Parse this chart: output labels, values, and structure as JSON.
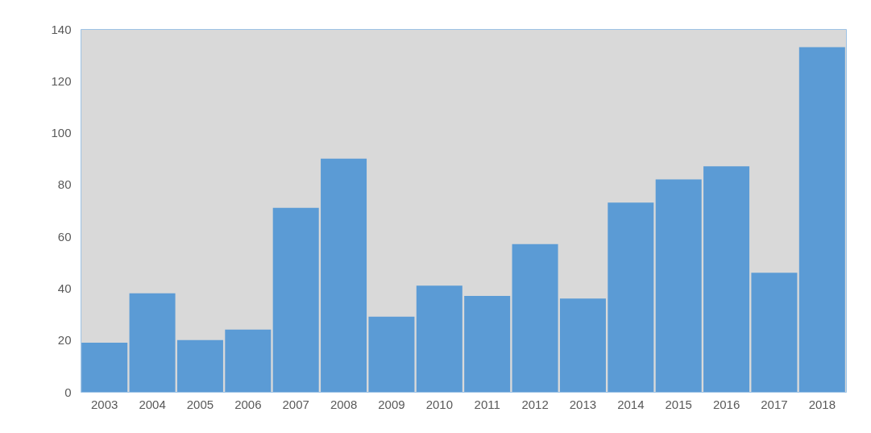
{
  "chart_data": {
    "type": "bar",
    "categories": [
      "2003",
      "2004",
      "2005",
      "2006",
      "2007",
      "2008",
      "2009",
      "2010",
      "2011",
      "2012",
      "2013",
      "2014",
      "2015",
      "2016",
      "2017",
      "2018"
    ],
    "values": [
      19,
      38,
      20,
      24,
      71,
      90,
      29,
      41,
      37,
      57,
      36,
      73,
      82,
      87,
      46,
      133
    ],
    "color": "#5b9bd5",
    "ylim": [
      0,
      140
    ],
    "yticks": [
      0,
      20,
      40,
      60,
      80,
      100,
      120,
      140
    ],
    "grid": false
  }
}
